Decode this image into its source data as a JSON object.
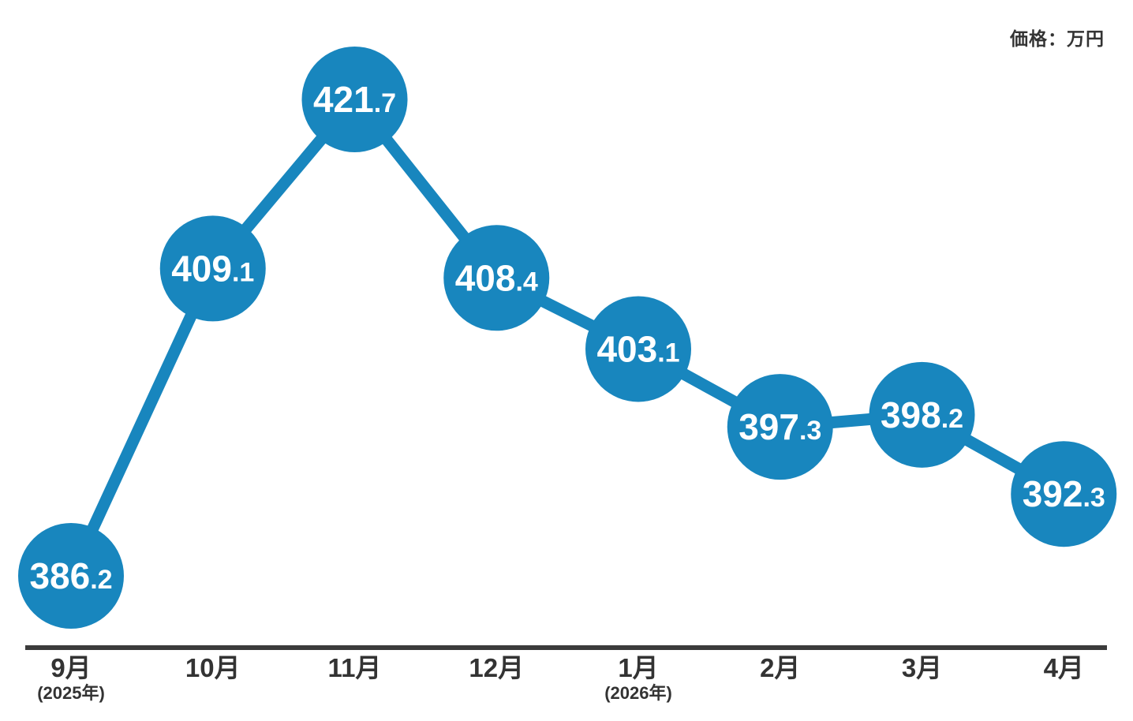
{
  "chart_data": {
    "type": "line",
    "title": "",
    "unit_label": "価格：万円",
    "categories": [
      "9月",
      "10月",
      "11月",
      "12月",
      "1月",
      "2月",
      "3月",
      "4月"
    ],
    "category_notes": [
      "(2025年)",
      "",
      "",
      "",
      "(2026年)",
      "",
      "",
      ""
    ],
    "series": [
      {
        "name": "価格",
        "values": [
          386.2,
          409.1,
          421.7,
          408.4,
          403.1,
          397.3,
          398.2,
          392.3
        ]
      }
    ],
    "ylim": [
      380,
      428
    ],
    "grid": false,
    "legend_position": "none",
    "value_labels_on_points": true,
    "colors": {
      "point": "#1886be",
      "value_text": "#ffffff",
      "axis": "#3b3b3b",
      "tick_label": "#333333"
    }
  }
}
